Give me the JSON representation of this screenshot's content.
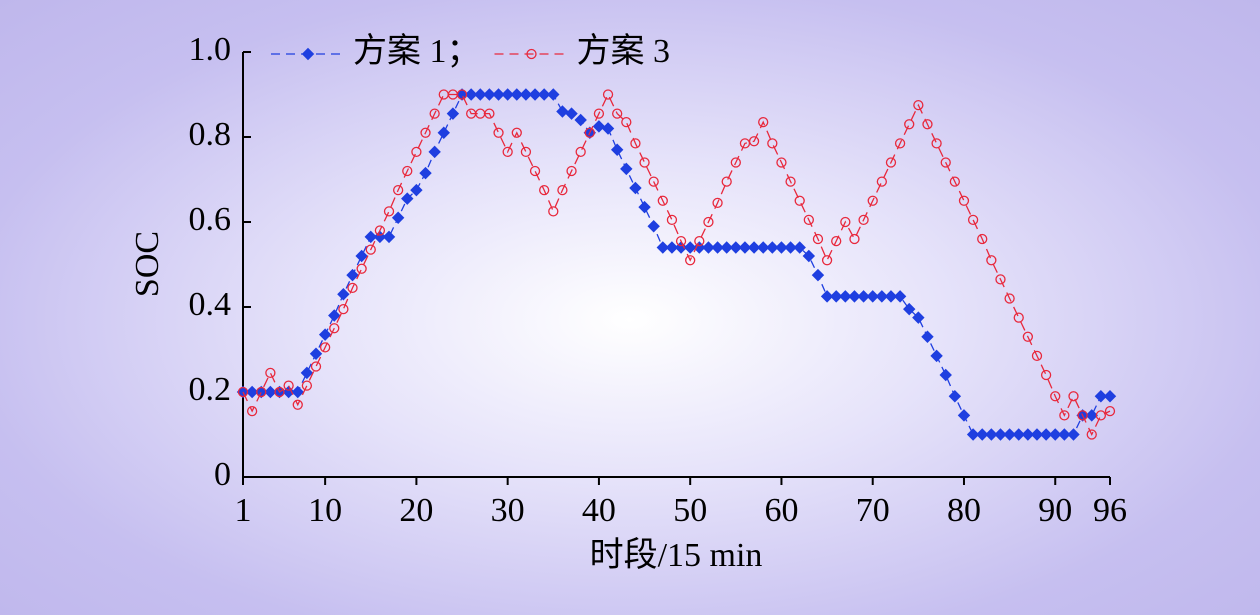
{
  "chart_data": {
    "type": "line",
    "xlabel": "时段/15 min",
    "ylabel": "SOC",
    "x": [
      1,
      2,
      3,
      4,
      5,
      6,
      7,
      8,
      9,
      10,
      11,
      12,
      13,
      14,
      15,
      16,
      17,
      18,
      19,
      20,
      21,
      22,
      23,
      24,
      25,
      26,
      27,
      28,
      29,
      30,
      31,
      32,
      33,
      34,
      35,
      36,
      37,
      38,
      39,
      40,
      41,
      42,
      43,
      44,
      45,
      46,
      47,
      48,
      49,
      50,
      51,
      52,
      53,
      54,
      55,
      56,
      57,
      58,
      59,
      60,
      61,
      62,
      63,
      64,
      65,
      66,
      67,
      68,
      69,
      70,
      71,
      72,
      73,
      74,
      75,
      76,
      77,
      78,
      79,
      80,
      81,
      82,
      83,
      84,
      85,
      86,
      87,
      88,
      89,
      90,
      91,
      92,
      93,
      94,
      95,
      96
    ],
    "series": [
      {
        "name": "方案 1；",
        "color": "#1f3fe0",
        "marker": "diamond",
        "values": [
          0.2,
          0.2,
          0.2,
          0.2,
          0.2,
          0.2,
          0.2,
          0.245,
          0.29,
          0.335,
          0.38,
          0.43,
          0.475,
          0.52,
          0.565,
          0.565,
          0.565,
          0.61,
          0.655,
          0.675,
          0.715,
          0.765,
          0.81,
          0.855,
          0.9,
          0.9,
          0.9,
          0.9,
          0.9,
          0.9,
          0.9,
          0.9,
          0.9,
          0.9,
          0.9,
          0.86,
          0.855,
          0.84,
          0.81,
          0.825,
          0.82,
          0.77,
          0.725,
          0.68,
          0.635,
          0.59,
          0.54,
          0.54,
          0.54,
          0.54,
          0.54,
          0.54,
          0.54,
          0.54,
          0.54,
          0.54,
          0.54,
          0.54,
          0.54,
          0.54,
          0.54,
          0.54,
          0.52,
          0.475,
          0.425,
          0.425,
          0.425,
          0.425,
          0.425,
          0.425,
          0.425,
          0.425,
          0.425,
          0.395,
          0.375,
          0.33,
          0.285,
          0.24,
          0.19,
          0.145,
          0.1,
          0.1,
          0.1,
          0.1,
          0.1,
          0.1,
          0.1,
          0.1,
          0.1,
          0.1,
          0.1,
          0.1,
          0.145,
          0.145,
          0.19,
          0.19
        ]
      },
      {
        "name": "方案 3",
        "color": "#e8283c",
        "marker": "circle",
        "values": [
          0.2,
          0.155,
          0.2,
          0.245,
          0.2,
          0.215,
          0.17,
          0.215,
          0.26,
          0.305,
          0.35,
          0.395,
          0.445,
          0.49,
          0.535,
          0.58,
          0.625,
          0.675,
          0.72,
          0.765,
          0.81,
          0.855,
          0.9,
          0.9,
          0.9,
          0.855,
          0.855,
          0.855,
          0.81,
          0.765,
          0.81,
          0.765,
          0.72,
          0.675,
          0.625,
          0.675,
          0.72,
          0.765,
          0.81,
          0.855,
          0.9,
          0.855,
          0.835,
          0.785,
          0.74,
          0.695,
          0.65,
          0.605,
          0.555,
          0.51,
          0.555,
          0.6,
          0.645,
          0.695,
          0.74,
          0.785,
          0.79,
          0.835,
          0.785,
          0.74,
          0.695,
          0.65,
          0.605,
          0.56,
          0.51,
          0.555,
          0.6,
          0.56,
          0.605,
          0.65,
          0.695,
          0.74,
          0.785,
          0.83,
          0.875,
          0.83,
          0.785,
          0.74,
          0.695,
          0.65,
          0.605,
          0.56,
          0.51,
          0.465,
          0.42,
          0.375,
          0.33,
          0.285,
          0.24,
          0.19,
          0.145,
          0.19,
          0.145,
          0.1,
          0.145,
          0.155
        ]
      }
    ],
    "xlim": [
      1,
      96
    ],
    "xticks": [
      1,
      10,
      20,
      30,
      40,
      50,
      60,
      70,
      80,
      90,
      96
    ],
    "ylim": [
      0,
      1
    ],
    "yticks": [
      0,
      0.2,
      0.4,
      0.6,
      0.8,
      {
        "value": 1,
        "label": "1.0"
      }
    ],
    "legend": "top-left"
  }
}
